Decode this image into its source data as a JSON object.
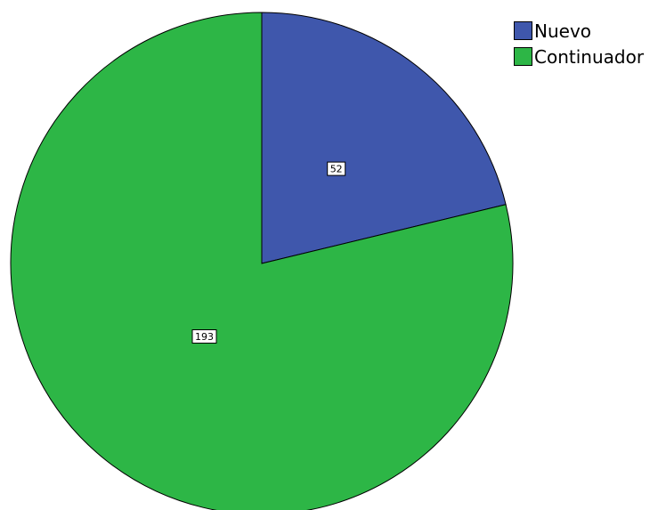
{
  "chart_data": {
    "type": "pie",
    "categories": [
      "Nuevo",
      "Continuador"
    ],
    "values": [
      52,
      193
    ],
    "data_labels": [
      "52",
      "193"
    ],
    "colors": [
      "#3F57AC",
      "#2DB646"
    ],
    "start": "12 o'clock",
    "direction": "clockwise",
    "legend_position": "top-right"
  }
}
